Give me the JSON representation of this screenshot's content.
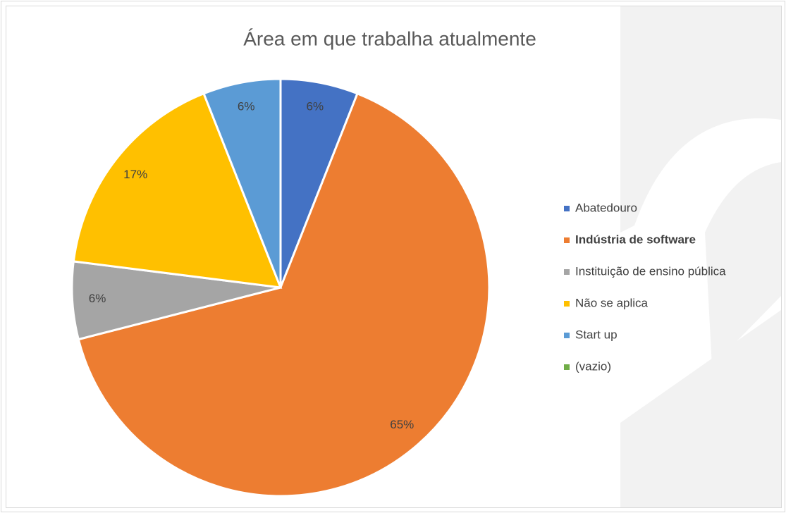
{
  "chart_data": {
    "type": "pie",
    "title": "Área em que trabalha atualmente",
    "categories": [
      "Abatedouro",
      "Indústria de software",
      "Instituição de ensino pública",
      "Não se aplica",
      "Start up",
      "(vazio)"
    ],
    "values": [
      6,
      65,
      6,
      17,
      6,
      0
    ],
    "value_labels": [
      "6%",
      "65%",
      "6%",
      "17%",
      "6%",
      null
    ],
    "colors": [
      "#4472c4",
      "#ed7d31",
      "#a5a5a5",
      "#ffc000",
      "#5b9bd5",
      "#70ad47"
    ],
    "legend": "right",
    "legend_bold": [
      false,
      true,
      false,
      false,
      false,
      false
    ]
  }
}
